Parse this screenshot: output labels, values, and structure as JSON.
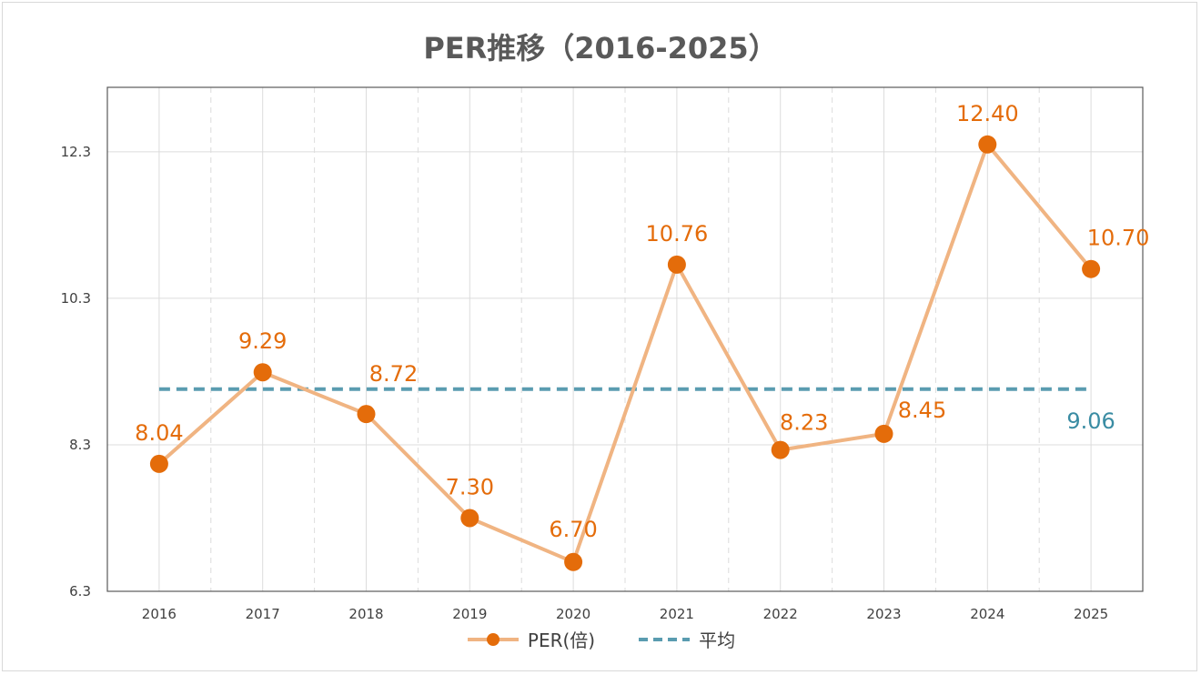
{
  "chart_data": {
    "type": "line",
    "title": "PER推移（2016-2025）",
    "categories": [
      "2016",
      "2017",
      "2018",
      "2019",
      "2020",
      "2021",
      "2022",
      "2023",
      "2024",
      "2025"
    ],
    "series": [
      {
        "name": "PER(倍)",
        "values": [
          8.04,
          9.29,
          8.72,
          7.3,
          6.7,
          10.76,
          8.23,
          8.45,
          12.4,
          10.7
        ],
        "labels": [
          "8.04",
          "9.29",
          "8.72",
          "7.30",
          "6.70",
          "10.76",
          "8.23",
          "8.45",
          "12.40",
          "10.70"
        ],
        "color": "#e46c0a",
        "line_color": "#f0b482"
      },
      {
        "name": "平均",
        "value": 9.06,
        "label": "9.06",
        "color": "#5a9cb0",
        "style": "dashed"
      }
    ],
    "yticks": [
      "6.3",
      "8.3",
      "10.3",
      "12.3"
    ],
    "ytick_values": [
      6.3,
      8.3,
      10.3,
      12.3
    ],
    "ylim": [
      6.3,
      13.18
    ],
    "grid": true,
    "legend": "bottom"
  }
}
